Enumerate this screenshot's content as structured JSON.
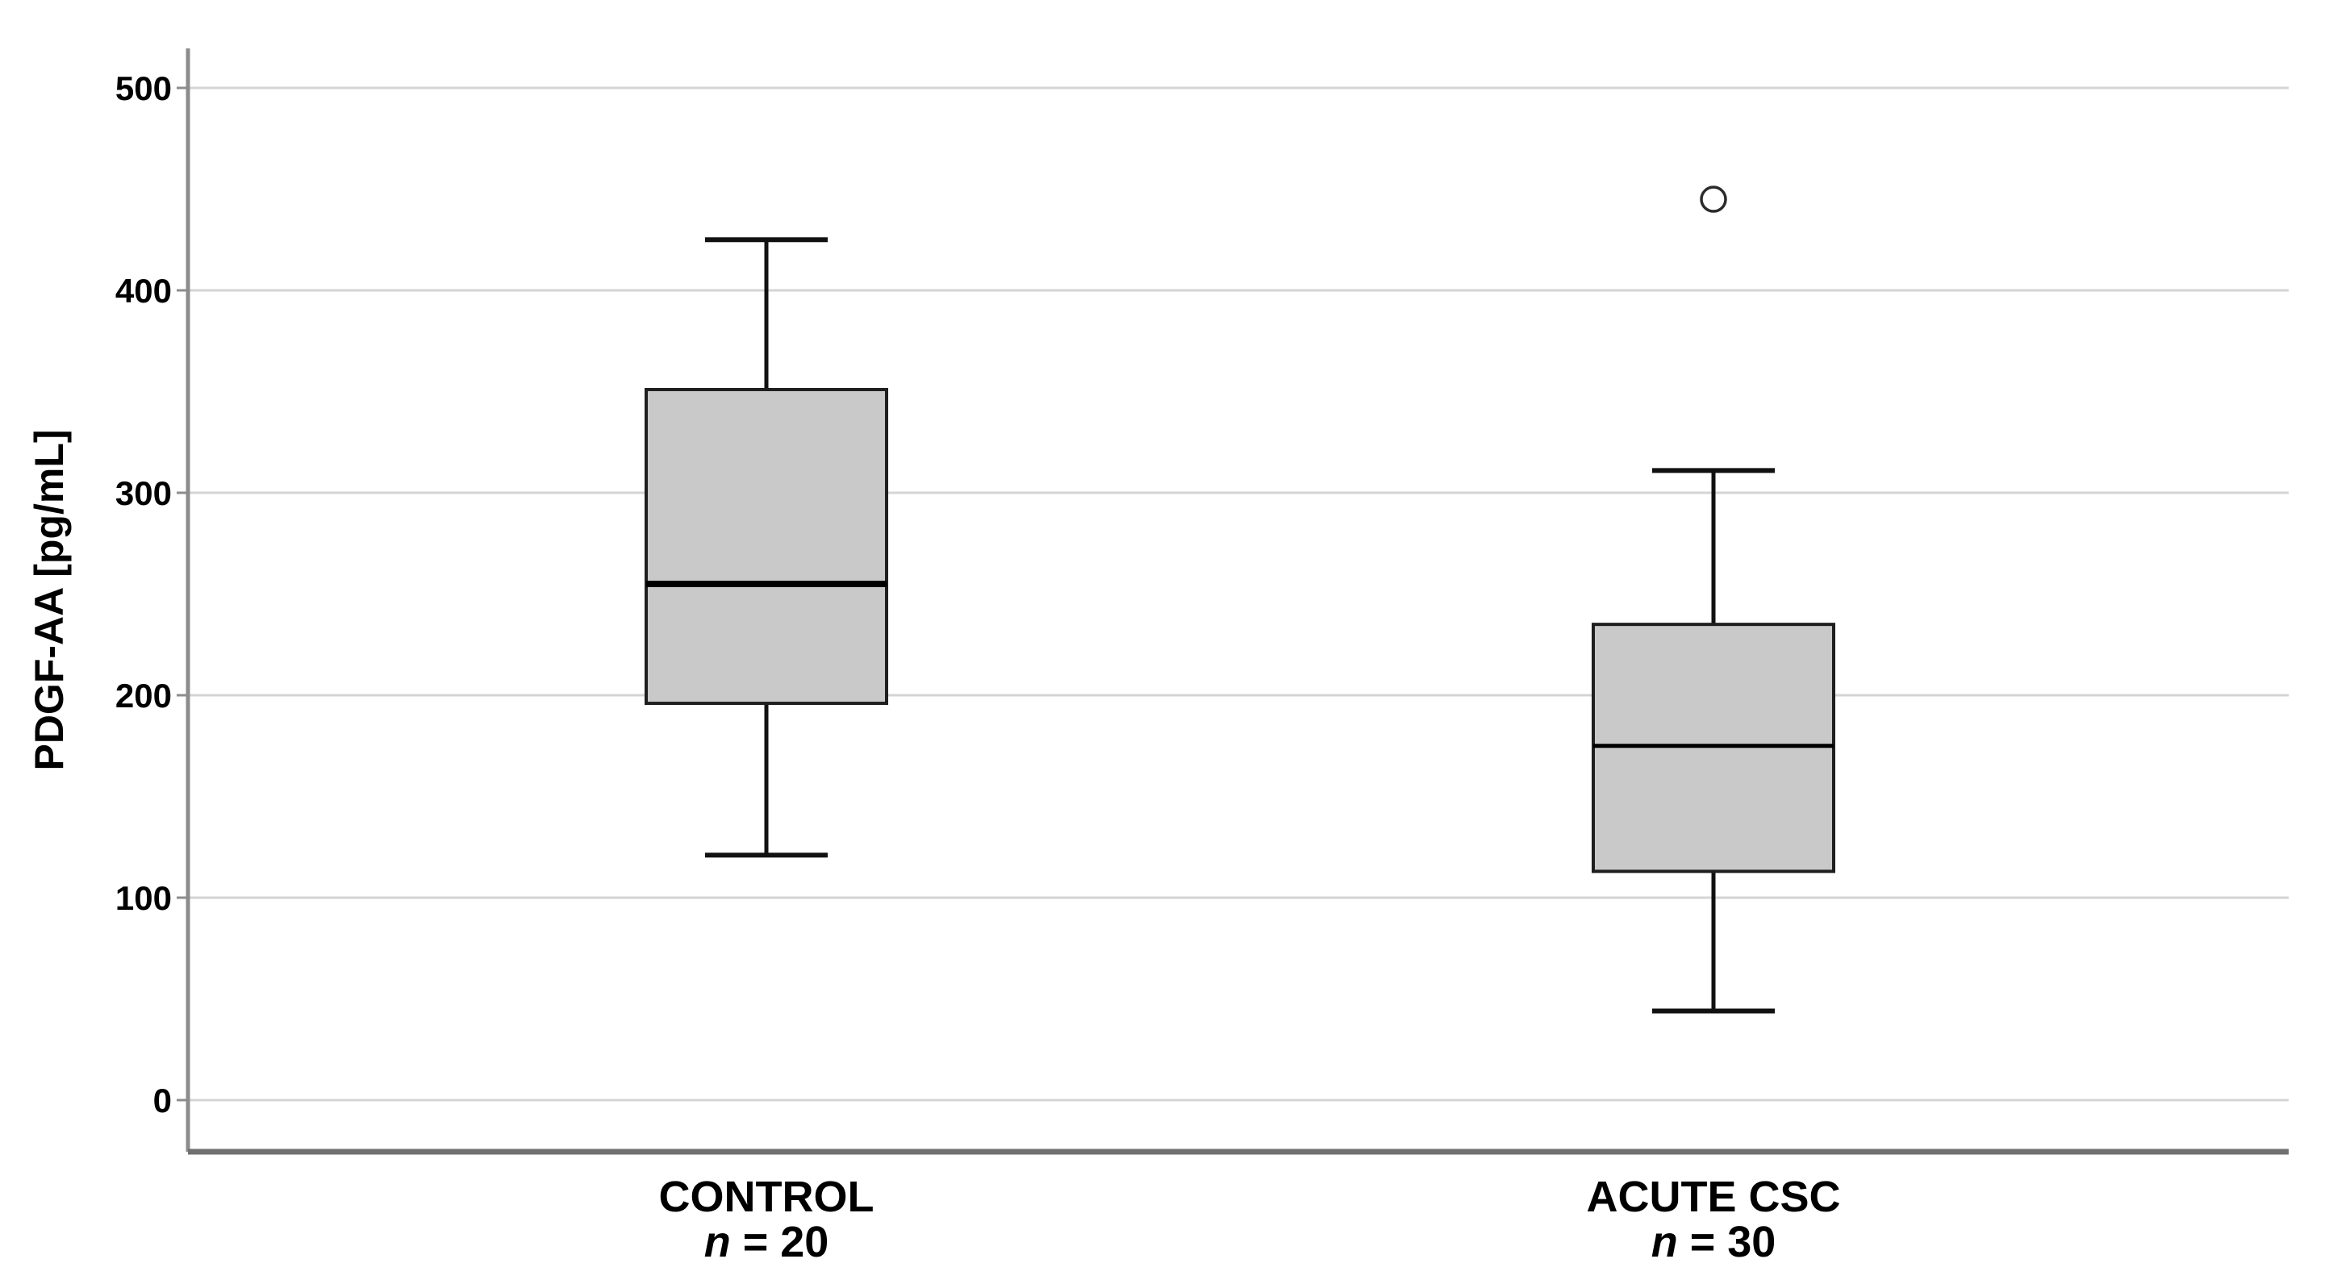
{
  "figure": {
    "background": "#ffffff"
  },
  "chart_data": {
    "type": "boxplot",
    "title": "",
    "ylabel": "PDGF-AA [pg/mL]",
    "xlabel": "",
    "units": "pg/mL",
    "yticks": [
      0,
      100,
      200,
      300,
      400,
      500
    ],
    "ylim": [
      -26,
      520
    ],
    "grid": true,
    "legend": false,
    "categories": [
      {
        "label": "CONTROL",
        "sublabel_italic": "n",
        "sublabel_rest": " = 20",
        "n": 20
      },
      {
        "label": "ACUTE CSC",
        "sublabel_italic": "n",
        "sublabel_rest": " = 30",
        "n": 30
      }
    ],
    "series": [
      {
        "name": "CONTROL",
        "whisker_low": 121,
        "q1": 196,
        "median": 255,
        "q3": 351,
        "whisker_high": 425,
        "outliers": []
      },
      {
        "name": "ACUTE CSC",
        "whisker_low": 44,
        "q1": 113,
        "median": 175,
        "q3": 235,
        "whisker_high": 311,
        "outliers": [
          445
        ]
      }
    ],
    "colors": {
      "background": "#ffffff",
      "box_fill": "#c9c9c9",
      "box_border": "#1f1f1f",
      "median": "#000000",
      "whisker": "#111111",
      "outlier_stroke": "#2b2b2b",
      "gridline": "#d4d4d4",
      "y_axis": "#8c8c8c",
      "x_axis": "#707070",
      "text": "#000000"
    }
  }
}
